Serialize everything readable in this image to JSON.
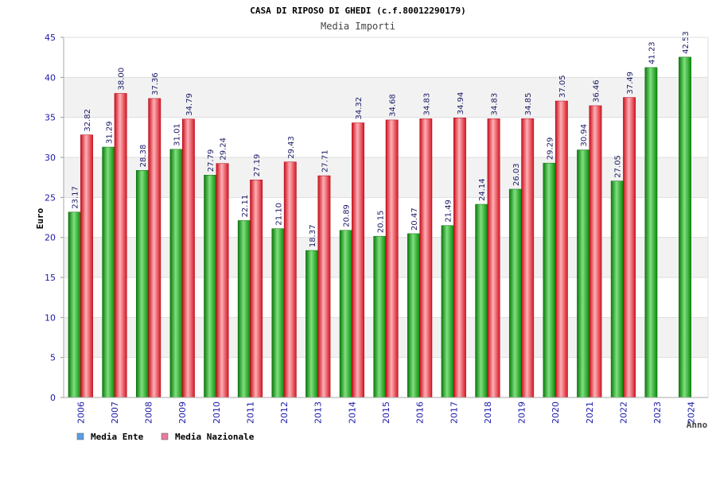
{
  "chart_data": {
    "type": "bar",
    "title": "CASA DI RIPOSO DI GHEDI (c.f.80012290179)",
    "subtitle": "Media Importi",
    "ylabel": "Euro",
    "xlabel": "Anno",
    "ylim": [
      0,
      45
    ],
    "yticks": [
      "0",
      "5",
      "10",
      "15",
      "20",
      "25",
      "30",
      "35",
      "40",
      "45"
    ],
    "grid": true,
    "legend_position": "bottom-left",
    "categories": [
      "2006",
      "2007",
      "2008",
      "2009",
      "2010",
      "2011",
      "2012",
      "2013",
      "2014",
      "2015",
      "2016",
      "2017",
      "2018",
      "2019",
      "2020",
      "2021",
      "2022",
      "2023",
      "2024"
    ],
    "series": [
      {
        "name": "Media Ente",
        "color": "#1fae1f",
        "legend_color": "#5a9fe6",
        "values": [
          23.17,
          31.29,
          28.38,
          31.01,
          27.79,
          22.11,
          21.1,
          18.37,
          20.89,
          20.15,
          20.47,
          21.49,
          24.14,
          26.03,
          29.29,
          30.94,
          27.05,
          41.23,
          42.53
        ],
        "labels": [
          "23.17",
          "31.29",
          "28.38",
          "31.01",
          "27.79",
          "22.11",
          "21.10",
          "18.37",
          "20.89",
          "20.15",
          "20.47",
          "21.49",
          "24.14",
          "26.03",
          "29.29",
          "30.94",
          "27.05",
          "41.23",
          "42.53"
        ]
      },
      {
        "name": "Media Nazionale",
        "color": "#e8323c",
        "legend_color": "#e87aa0",
        "values": [
          32.82,
          38.0,
          37.36,
          34.79,
          29.24,
          27.19,
          29.43,
          27.71,
          34.32,
          34.68,
          34.83,
          34.94,
          34.83,
          34.85,
          37.05,
          36.46,
          37.49,
          null,
          null
        ],
        "labels": [
          "32.82",
          "38.00",
          "37.36",
          "34.79",
          "29.24",
          "27.19",
          "29.43",
          "27.71",
          "34.32",
          "34.68",
          "34.83",
          "34.94",
          "34.83",
          "34.85",
          "37.05",
          "36.46",
          "37.49",
          "",
          ""
        ]
      }
    ]
  }
}
